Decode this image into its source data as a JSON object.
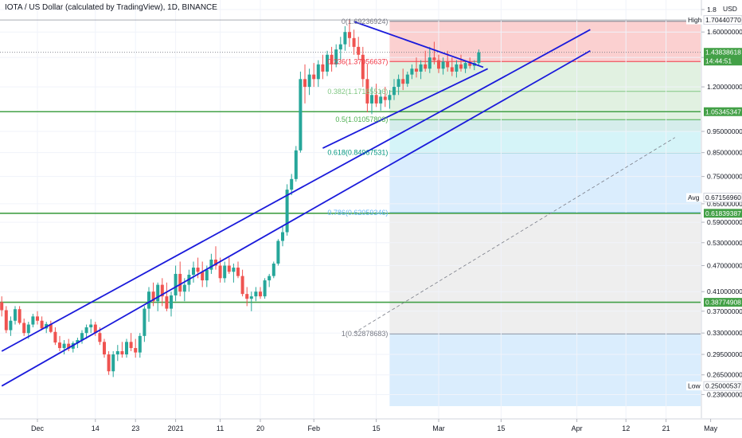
{
  "header": {
    "title": "IOTA / US Dollar (calculated by TradingView), 1D, BINANCE"
  },
  "chart_data": {
    "type": "candlestick",
    "title": "IOTA / US Dollar (calculated by TradingView), 1D, BINANCE",
    "currency": "USD",
    "price_axis": {
      "scale": "log",
      "range": [
        0.2249,
        1.8
      ],
      "ticks": [
        "1.8",
        "1.60000000",
        "1.40000000",
        "1.20000000",
        "0.95000000",
        "0.85000000",
        "0.75000000",
        "0.65000000",
        "0.59000000",
        "0.53000000",
        "0.47000000",
        "0.41000000",
        "0.37000000",
        "0.33000000",
        "0.29500000",
        "0.26500000",
        "0.23900000"
      ],
      "tick_values": [
        1.8,
        1.6,
        1.4,
        1.2,
        0.95,
        0.85,
        0.75,
        0.65,
        0.59,
        0.53,
        0.47,
        0.41,
        0.37,
        0.33,
        0.295,
        0.265,
        0.239
      ],
      "currency_label": "USD"
    },
    "time_axis": {
      "ticks": [
        {
          "label": "Dec",
          "day": 0
        },
        {
          "label": "14",
          "day": 13
        },
        {
          "label": "23",
          "day": 22
        },
        {
          "label": "2021",
          "day": 31
        },
        {
          "label": "11",
          "day": 41
        },
        {
          "label": "20",
          "day": 50
        },
        {
          "label": "Feb",
          "day": 62
        },
        {
          "label": "15",
          "day": 76
        },
        {
          "label": "Mar",
          "day": 90
        },
        {
          "label": "15",
          "day": 104
        },
        {
          "label": "Apr",
          "day": 121
        },
        {
          "label": "12",
          "day": 132
        },
        {
          "label": "21",
          "day": 141
        },
        {
          "label": "May",
          "day": 151
        }
      ]
    },
    "price_labels": [
      {
        "prefix": "High",
        "value": "1.70440770",
        "price": 1.7044,
        "style": "plain"
      },
      {
        "prefix": "",
        "value": "1.43838618",
        "sub": "14:44:51",
        "price": 1.4384,
        "style": "green"
      },
      {
        "prefix": "",
        "value": "1.05345347",
        "price": 1.0535,
        "style": "green"
      },
      {
        "prefix": "Avg",
        "value": "0.67156960",
        "price": 0.6716,
        "style": "plain"
      },
      {
        "prefix": "",
        "value": "0.61839387",
        "price": 0.6184,
        "style": "green"
      },
      {
        "prefix": "",
        "value": "0.38774908",
        "price": 0.3877,
        "style": "green"
      },
      {
        "prefix": "Low",
        "value": "0.25000537",
        "price": 0.25,
        "style": "plain"
      }
    ],
    "fibonacci": {
      "start_day": 79,
      "end_day": 151,
      "levels": [
        {
          "ratio": 0,
          "label": "0(1.69236924)",
          "price": 1.6924,
          "color": "#787b86"
        },
        {
          "ratio": 0.236,
          "label": "0.236(1.37056637)",
          "price": 1.3706,
          "color": "#f23645"
        },
        {
          "ratio": 0.382,
          "label": "0.382(1.17185516)",
          "price": 1.1719,
          "color": "#81c784"
        },
        {
          "ratio": 0.5,
          "label": "0.5(1.01057803)",
          "price": 1.0106,
          "color": "#4caf50"
        },
        {
          "ratio": 0.618,
          "label": "0.618(0.84967531)",
          "price": 0.8497,
          "color": "#089981"
        },
        {
          "ratio": 0.786,
          "label": "0.786(0.62059346)",
          "price": 0.6206,
          "color": "#64b5f6"
        },
        {
          "ratio": 1,
          "label": "1(0.32878683)",
          "price": 0.3288,
          "color": "#787b86"
        }
      ],
      "zone_prices": [
        1.6924,
        1.3706,
        1.1719,
        1.0106,
        0.95,
        0.8497,
        0.6206,
        0.3288,
        0.2249
      ],
      "zone_colors": [
        "#f7a9a9",
        "#c8e6c9",
        "#c8e6c9",
        "#b2dfdb",
        "#b2ebf2",
        "#bbdefb",
        "#e0e0e0",
        "#bbdefb"
      ]
    },
    "horizontal_lines": [
      1.0535,
      0.6184,
      0.3877
    ],
    "dotted_current_price": 1.4384,
    "channel_lines": [
      {
        "x1": 0,
        "y1": 0.3,
        "x2": 132,
        "y2": 1.62
      },
      {
        "x1": 0,
        "y1": 0.25,
        "x2": 132,
        "y2": 1.45
      },
      {
        "x1": 72,
        "y1": 0.87,
        "x2": 109,
        "y2": 1.32
      }
    ],
    "triangle_top": {
      "x1": 79,
      "y1": 1.69,
      "x2": 108,
      "y2": 1.33
    },
    "trend_dashed": {
      "x1": 79,
      "y1": 0.33,
      "x2": 151,
      "y2": 0.92
    },
    "candles": [
      [
        0.388,
        0.4,
        0.36,
        0.372
      ],
      [
        0.372,
        0.38,
        0.33,
        0.335
      ],
      [
        0.335,
        0.36,
        0.325,
        0.352
      ],
      [
        0.352,
        0.38,
        0.345,
        0.374
      ],
      [
        0.374,
        0.38,
        0.345,
        0.348
      ],
      [
        0.348,
        0.356,
        0.325,
        0.33
      ],
      [
        0.33,
        0.35,
        0.32,
        0.345
      ],
      [
        0.345,
        0.365,
        0.34,
        0.36
      ],
      [
        0.36,
        0.37,
        0.345,
        0.352
      ],
      [
        0.352,
        0.36,
        0.335,
        0.338
      ],
      [
        0.338,
        0.35,
        0.33,
        0.346
      ],
      [
        0.346,
        0.352,
        0.33,
        0.332
      ],
      [
        0.332,
        0.34,
        0.31,
        0.314
      ],
      [
        0.314,
        0.325,
        0.3,
        0.305
      ],
      [
        0.305,
        0.318,
        0.295,
        0.312
      ],
      [
        0.312,
        0.32,
        0.3,
        0.304
      ],
      [
        0.304,
        0.316,
        0.298,
        0.313
      ],
      [
        0.313,
        0.322,
        0.305,
        0.318
      ],
      [
        0.318,
        0.335,
        0.312,
        0.33
      ],
      [
        0.33,
        0.345,
        0.32,
        0.34
      ],
      [
        0.34,
        0.355,
        0.33,
        0.345
      ],
      [
        0.345,
        0.35,
        0.325,
        0.33
      ],
      [
        0.33,
        0.34,
        0.31,
        0.315
      ],
      [
        0.315,
        0.32,
        0.29,
        0.295
      ],
      [
        0.295,
        0.3,
        0.265,
        0.27
      ],
      [
        0.27,
        0.3,
        0.262,
        0.295
      ],
      [
        0.295,
        0.31,
        0.285,
        0.3
      ],
      [
        0.3,
        0.315,
        0.29,
        0.295
      ],
      [
        0.295,
        0.32,
        0.29,
        0.315
      ],
      [
        0.315,
        0.33,
        0.3,
        0.305
      ],
      [
        0.305,
        0.32,
        0.29,
        0.298
      ],
      [
        0.298,
        0.33,
        0.29,
        0.325
      ],
      [
        0.325,
        0.38,
        0.315,
        0.375
      ],
      [
        0.375,
        0.42,
        0.35,
        0.41
      ],
      [
        0.41,
        0.43,
        0.38,
        0.39
      ],
      [
        0.39,
        0.43,
        0.37,
        0.425
      ],
      [
        0.425,
        0.44,
        0.38,
        0.4
      ],
      [
        0.4,
        0.43,
        0.37,
        0.375
      ],
      [
        0.375,
        0.41,
        0.36,
        0.402
      ],
      [
        0.402,
        0.47,
        0.39,
        0.45
      ],
      [
        0.45,
        0.48,
        0.4,
        0.41
      ],
      [
        0.41,
        0.44,
        0.39,
        0.425
      ],
      [
        0.425,
        0.46,
        0.41,
        0.448
      ],
      [
        0.448,
        0.48,
        0.43,
        0.465
      ],
      [
        0.465,
        0.49,
        0.44,
        0.455
      ],
      [
        0.455,
        0.48,
        0.42,
        0.435
      ],
      [
        0.435,
        0.47,
        0.42,
        0.46
      ],
      [
        0.46,
        0.5,
        0.45,
        0.485
      ],
      [
        0.485,
        0.52,
        0.46,
        0.47
      ],
      [
        0.47,
        0.49,
        0.43,
        0.44
      ],
      [
        0.44,
        0.48,
        0.43,
        0.47
      ],
      [
        0.47,
        0.49,
        0.45,
        0.455
      ],
      [
        0.455,
        0.475,
        0.43,
        0.465
      ],
      [
        0.465,
        0.48,
        0.44,
        0.445
      ],
      [
        0.445,
        0.46,
        0.4,
        0.405
      ],
      [
        0.405,
        0.42,
        0.38,
        0.395
      ],
      [
        0.395,
        0.41,
        0.37,
        0.4
      ],
      [
        0.4,
        0.42,
        0.39,
        0.41
      ],
      [
        0.41,
        0.42,
        0.395,
        0.4
      ],
      [
        0.4,
        0.44,
        0.395,
        0.435
      ],
      [
        0.435,
        0.45,
        0.42,
        0.445
      ],
      [
        0.445,
        0.48,
        0.44,
        0.475
      ],
      [
        0.475,
        0.54,
        0.47,
        0.535
      ],
      [
        0.535,
        0.58,
        0.52,
        0.56
      ],
      [
        0.56,
        0.72,
        0.55,
        0.7
      ],
      [
        0.7,
        0.76,
        0.68,
        0.74
      ],
      [
        0.74,
        0.88,
        0.73,
        0.86
      ],
      [
        0.86,
        1.3,
        0.85,
        1.25
      ],
      [
        1.25,
        1.35,
        1.1,
        1.2
      ],
      [
        1.2,
        1.32,
        1.15,
        1.28
      ],
      [
        1.28,
        1.36,
        1.2,
        1.25
      ],
      [
        1.25,
        1.38,
        1.2,
        1.35
      ],
      [
        1.35,
        1.42,
        1.25,
        1.3
      ],
      [
        1.3,
        1.45,
        1.27,
        1.42
      ],
      [
        1.42,
        1.48,
        1.3,
        1.35
      ],
      [
        1.35,
        1.5,
        1.33,
        1.46
      ],
      [
        1.46,
        1.56,
        1.38,
        1.5
      ],
      [
        1.5,
        1.65,
        1.45,
        1.6
      ],
      [
        1.6,
        1.704,
        1.48,
        1.55
      ],
      [
        1.55,
        1.62,
        1.42,
        1.48
      ],
      [
        1.48,
        1.56,
        1.38,
        1.42
      ],
      [
        1.42,
        1.48,
        1.2,
        1.25
      ],
      [
        1.25,
        1.35,
        1.05,
        1.1
      ],
      [
        1.1,
        1.2,
        1.04,
        1.15
      ],
      [
        1.15,
        1.22,
        1.08,
        1.1
      ],
      [
        1.1,
        1.18,
        1.06,
        1.14
      ],
      [
        1.14,
        1.2,
        1.08,
        1.12
      ],
      [
        1.12,
        1.18,
        1.07,
        1.15
      ],
      [
        1.15,
        1.25,
        1.12,
        1.2
      ],
      [
        1.2,
        1.28,
        1.15,
        1.25
      ],
      [
        1.25,
        1.32,
        1.18,
        1.22
      ],
      [
        1.22,
        1.3,
        1.2,
        1.28
      ],
      [
        1.28,
        1.35,
        1.25,
        1.32
      ],
      [
        1.32,
        1.4,
        1.26,
        1.3
      ],
      [
        1.3,
        1.38,
        1.25,
        1.35
      ],
      [
        1.35,
        1.45,
        1.3,
        1.32
      ],
      [
        1.32,
        1.48,
        1.29,
        1.4
      ],
      [
        1.4,
        1.52,
        1.35,
        1.38
      ],
      [
        1.38,
        1.42,
        1.29,
        1.32
      ],
      [
        1.32,
        1.4,
        1.28,
        1.37
      ],
      [
        1.37,
        1.45,
        1.3,
        1.33
      ],
      [
        1.33,
        1.4,
        1.27,
        1.3
      ],
      [
        1.3,
        1.38,
        1.26,
        1.35
      ],
      [
        1.35,
        1.42,
        1.3,
        1.32
      ],
      [
        1.32,
        1.38,
        1.29,
        1.36
      ],
      [
        1.36,
        1.4,
        1.32,
        1.34
      ],
      [
        1.34,
        1.38,
        1.31,
        1.36
      ],
      [
        1.36,
        1.46,
        1.34,
        1.438
      ]
    ]
  }
}
